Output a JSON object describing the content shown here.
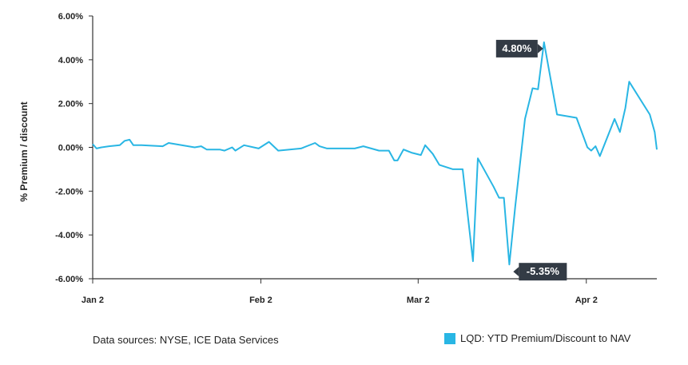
{
  "chart_data": {
    "type": "line",
    "ylabel": "% Premium / discount",
    "ylim": [
      -6,
      6
    ],
    "y_ticks": [
      6,
      4,
      2,
      0,
      -2,
      -4,
      -6
    ],
    "y_tick_labels": [
      "6.00%",
      "4.00%",
      "2.00%",
      "0.00%",
      "-2.00%",
      "-4.00%",
      "-6.00%"
    ],
    "x_ticks": [
      {
        "label": "Jan 2",
        "day": 0
      },
      {
        "label": "Feb 2",
        "day": 31
      },
      {
        "label": "Mar 2",
        "day": 60
      },
      {
        "label": "Apr 2",
        "day": 91
      }
    ],
    "x_range_days": [
      0,
      104
    ],
    "series": [
      {
        "name": "LQD: YTD Premium/Discount to NAV",
        "color": "#29b6e4",
        "points": [
          [
            0.0,
            0.15
          ],
          [
            0.7,
            -0.05
          ],
          [
            1.6,
            0.0
          ],
          [
            3.0,
            0.05
          ],
          [
            5.0,
            0.1
          ],
          [
            5.9,
            0.3
          ],
          [
            6.8,
            0.35
          ],
          [
            7.5,
            0.1
          ],
          [
            9.0,
            0.1
          ],
          [
            12.9,
            0.05
          ],
          [
            14.0,
            0.2
          ],
          [
            18.8,
            0.0
          ],
          [
            20.0,
            0.05
          ],
          [
            21.0,
            -0.1
          ],
          [
            23.4,
            -0.1
          ],
          [
            24.3,
            -0.15
          ],
          [
            25.7,
            0.0
          ],
          [
            26.3,
            -0.15
          ],
          [
            27.9,
            0.1
          ],
          [
            30.6,
            -0.05
          ],
          [
            32.5,
            0.25
          ],
          [
            34.2,
            -0.15
          ],
          [
            38.4,
            -0.05
          ],
          [
            41.0,
            0.2
          ],
          [
            41.8,
            0.05
          ],
          [
            43.2,
            -0.05
          ],
          [
            46.5,
            -0.05
          ],
          [
            48.3,
            -0.05
          ],
          [
            49.9,
            0.05
          ],
          [
            52.8,
            -0.15
          ],
          [
            54.6,
            -0.15
          ],
          [
            55.6,
            -0.6
          ],
          [
            56.2,
            -0.6
          ],
          [
            57.3,
            -0.1
          ],
          [
            58.9,
            -0.25
          ],
          [
            60.5,
            -0.35
          ],
          [
            61.3,
            0.1
          ],
          [
            62.7,
            -0.3
          ],
          [
            63.9,
            -0.8
          ],
          [
            66.4,
            -1.0
          ],
          [
            68.2,
            -1.0
          ],
          [
            69.1,
            -3.0
          ],
          [
            70.1,
            -5.2
          ],
          [
            71.0,
            -0.5
          ],
          [
            73.9,
            -1.8
          ],
          [
            74.9,
            -2.3
          ],
          [
            75.8,
            -2.3
          ],
          [
            76.8,
            -5.35
          ],
          [
            77.9,
            -2.7
          ],
          [
            79.7,
            1.3
          ],
          [
            81.1,
            2.7
          ],
          [
            82.1,
            2.65
          ],
          [
            83.2,
            4.8
          ],
          [
            85.6,
            1.5
          ],
          [
            89.2,
            1.35
          ],
          [
            91.2,
            0.0
          ],
          [
            91.9,
            -0.15
          ],
          [
            92.7,
            0.05
          ],
          [
            93.5,
            -0.4
          ],
          [
            96.2,
            1.3
          ],
          [
            97.2,
            0.7
          ],
          [
            98.2,
            1.8
          ],
          [
            98.9,
            3.0
          ],
          [
            102.7,
            1.5
          ],
          [
            103.6,
            0.7
          ],
          [
            104.0,
            -0.1
          ]
        ]
      }
    ],
    "annotations": [
      {
        "text": "4.80%",
        "day": 83.2,
        "value": 4.8,
        "side": "left"
      },
      {
        "text": "-5.35%",
        "day": 76.8,
        "value": -5.35,
        "side": "right"
      }
    ],
    "grid": false,
    "legend_position": "bottom-right"
  },
  "footer": {
    "source": "Data sources: NYSE, ICE Data Services",
    "legend_label": "LQD: YTD Premium/Discount to NAV"
  },
  "colors": {
    "line": "#29b6e4",
    "axis": "#333333",
    "callout_bg": "#333b45"
  }
}
